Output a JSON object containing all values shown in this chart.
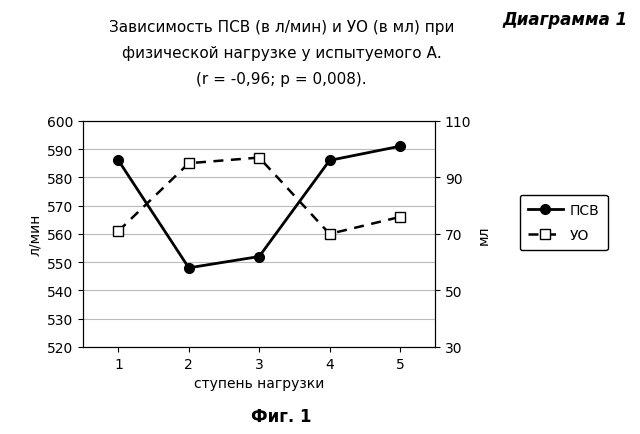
{
  "title_line1": "Зависимость ПСВ (в л/мин) и УО (в мл) при",
  "title_line2": "физической нагрузке у испытуемого А.",
  "title_line3": "(r = -0,96; p = 0,008).",
  "diagram_label": "Диаграмма 1",
  "xlabel": "ступень нагрузки",
  "ylabel_left": "л/мин",
  "ylabel_right": "мл",
  "caption": "Фиг. 1",
  "x": [
    1,
    2,
    3,
    4,
    5
  ],
  "psv": [
    586,
    548,
    552,
    586,
    591
  ],
  "uo": [
    71,
    95,
    97,
    70,
    76
  ],
  "ylim_left": [
    520,
    600
  ],
  "ylim_right": [
    30,
    110
  ],
  "yticks_left": [
    520,
    530,
    540,
    550,
    560,
    570,
    580,
    590,
    600
  ],
  "yticks_right": [
    30,
    50,
    70,
    90,
    110
  ],
  "xticks": [
    1,
    2,
    3,
    4,
    5
  ],
  "psv_color": "#000000",
  "uo_color": "#000000",
  "legend_psv": "ПСВ",
  "legend_uo": "УО",
  "background_color": "#ffffff",
  "grid_color": "#bbbbbb",
  "title_fontsize": 11,
  "tick_fontsize": 10,
  "label_fontsize": 10,
  "caption_fontsize": 12,
  "diagram_fontsize": 12
}
